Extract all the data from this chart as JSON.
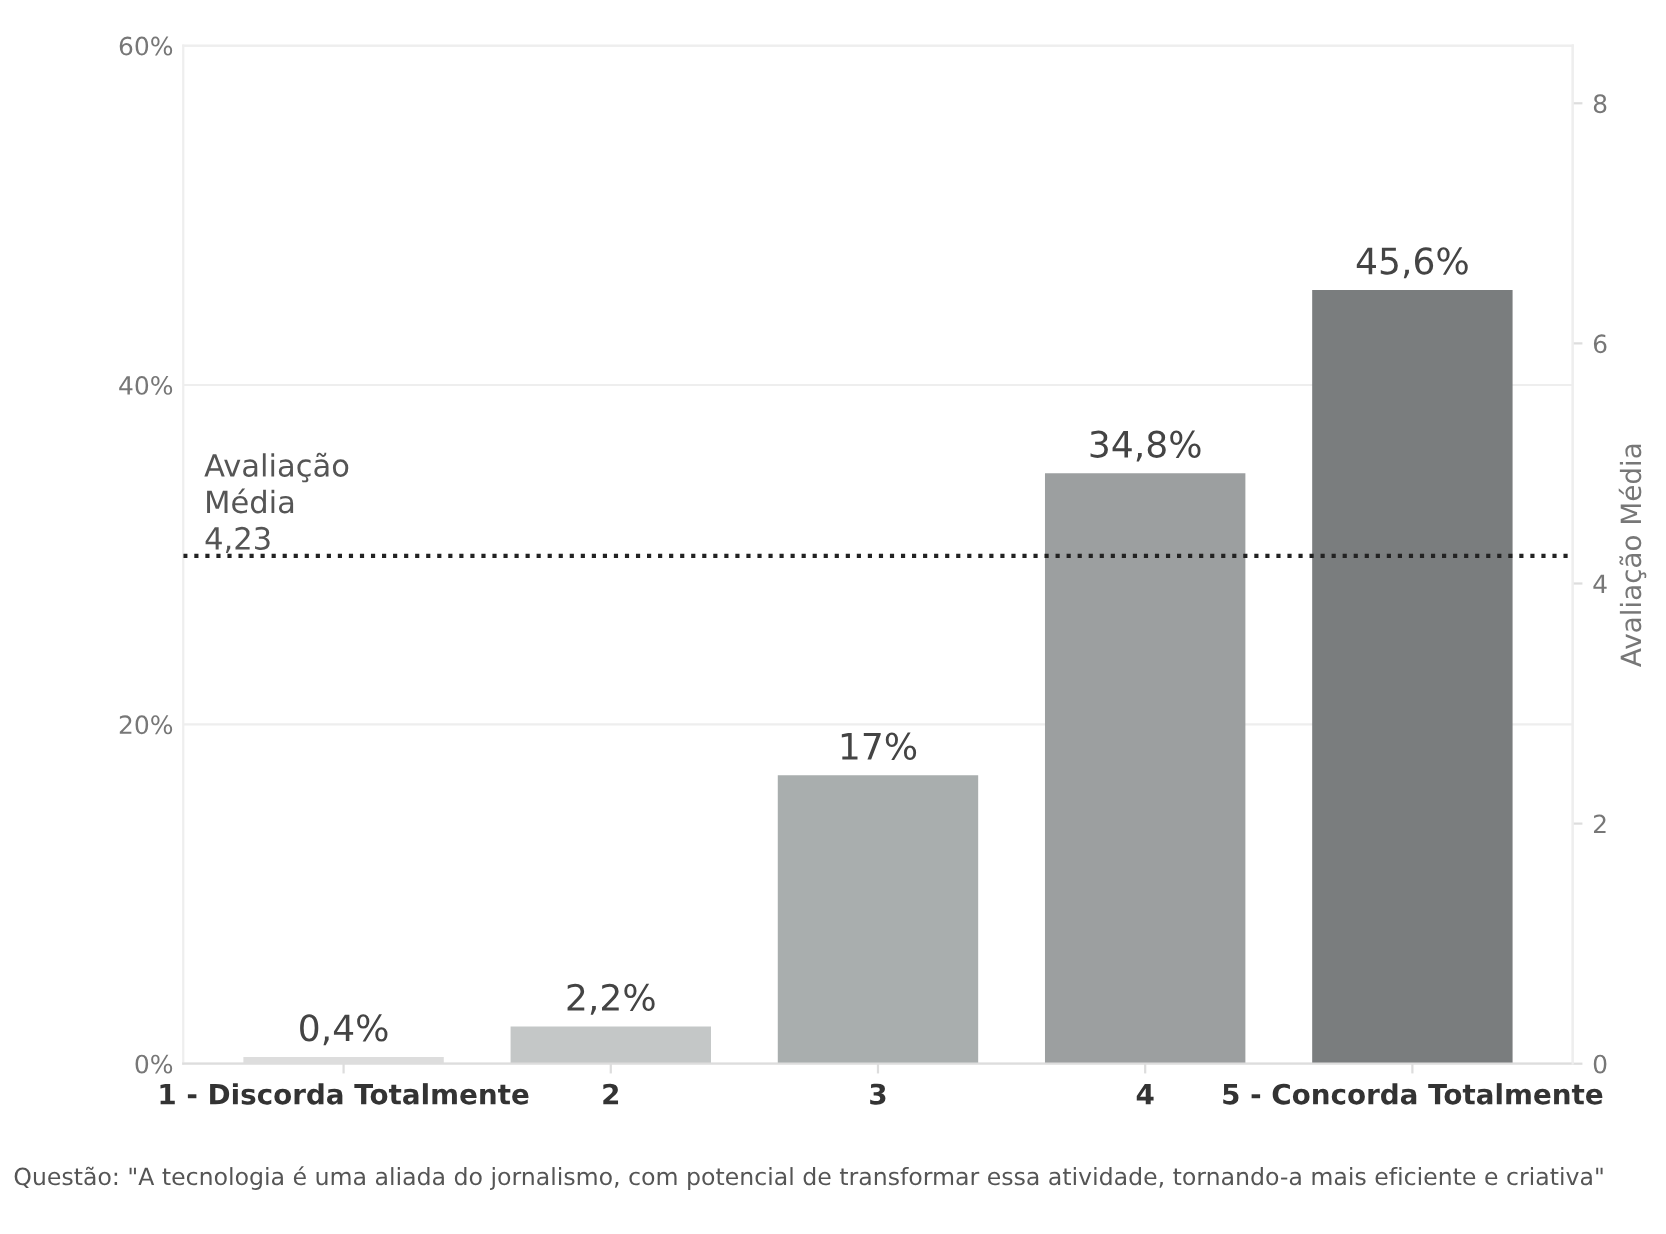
{
  "chart_data": {
    "type": "bar",
    "categories": [
      "1 - Discorda Totalmente",
      "2",
      "3",
      "4",
      "5 - Concorda Totalmente"
    ],
    "values": [
      0.4,
      2.2,
      17,
      34.8,
      45.6
    ],
    "colors": [
      "#dddddd",
      "#c4c7c7",
      "#a9aeae",
      "#9c9fa0",
      "#7a7d7e"
    ],
    "value_labels": [
      "0,4%",
      "2,2%",
      "17%",
      "34,8%",
      "45,6%"
    ],
    "ylim": [
      0,
      60
    ],
    "yticks": [
      {
        "value": 0,
        "label": "0%"
      },
      {
        "value": 20,
        "label": "20%"
      },
      {
        "value": 40,
        "label": "40%"
      },
      {
        "value": 60,
        "label": "60%"
      }
    ],
    "y2label": "Avaliação Média",
    "y2lim": [
      0,
      8.48
    ],
    "y2ticks": [
      0,
      2,
      4,
      6,
      8
    ],
    "ref_lines": [
      {
        "axis": "y2",
        "value": 4.23,
        "label": "Avaliação\nMédia\n4,23",
        "color": "#222222",
        "line_style": "dotted"
      }
    ],
    "grid": "y",
    "legend": false,
    "annotations": [
      "Questão: \"A tecnologia é uma aliada do jornalismo, com potencial de transformar essa atividade, tornando-a mais eficiente e criativa\""
    ]
  }
}
